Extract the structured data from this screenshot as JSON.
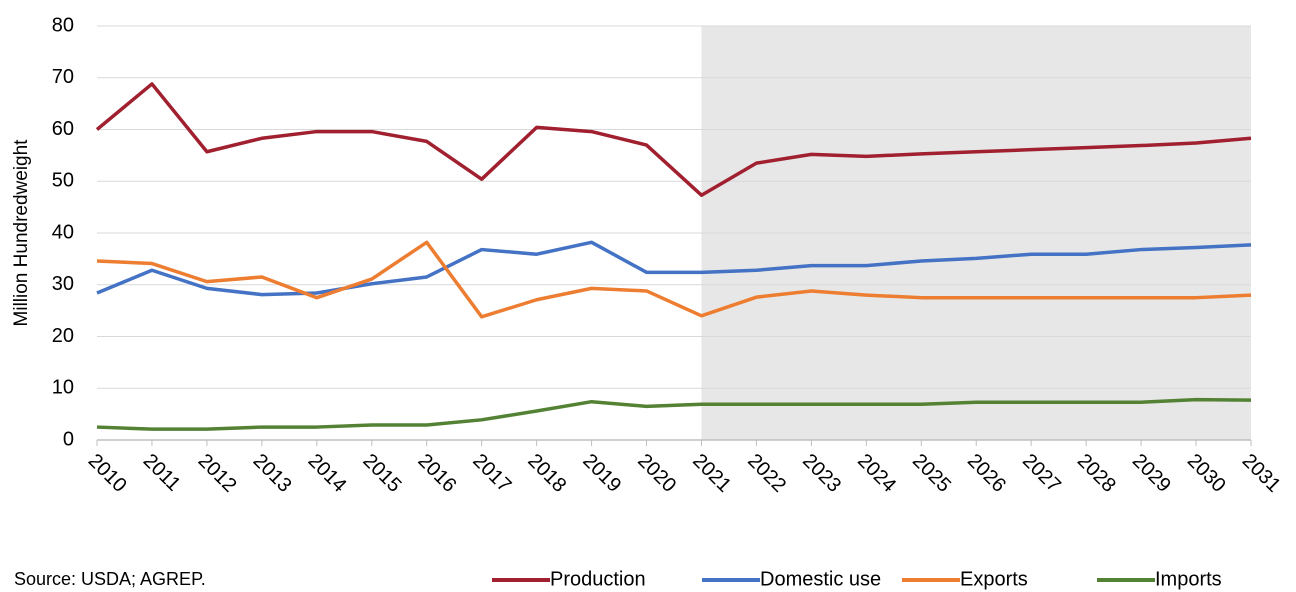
{
  "chart_data": {
    "type": "line",
    "y_label": "Million Hundredweight",
    "source": "Source: USDA; AGREP.",
    "x": [
      2010,
      2011,
      2012,
      2013,
      2014,
      2015,
      2016,
      2017,
      2018,
      2019,
      2020,
      2021,
      2022,
      2023,
      2024,
      2025,
      2026,
      2027,
      2028,
      2029,
      2030,
      2031
    ],
    "xlim": [
      2010,
      2031
    ],
    "xticks": [
      2010,
      2011,
      2012,
      2013,
      2014,
      2015,
      2016,
      2017,
      2018,
      2019,
      2020,
      2021,
      2022,
      2023,
      2024,
      2025,
      2026,
      2027,
      2028,
      2029,
      2030,
      2031
    ],
    "ylim": [
      0,
      80
    ],
    "yticks": [
      0,
      10,
      20,
      30,
      40,
      50,
      60,
      70,
      80
    ],
    "grid": true,
    "shaded_xrange": [
      2021,
      2031
    ],
    "shade_color": "#e7e7e7",
    "legend": "bottom",
    "series": [
      {
        "name": "Production",
        "color": "#a0202f",
        "values": [
          60.0,
          68.8,
          55.7,
          58.3,
          59.6,
          59.6,
          57.7,
          50.4,
          60.4,
          59.6,
          57.0,
          47.3,
          53.5,
          55.2,
          54.8,
          55.3,
          55.7,
          56.1,
          56.5,
          56.9,
          57.4,
          58.3
        ]
      },
      {
        "name": "Domestic use",
        "color": "#4472c4",
        "values": [
          28.4,
          32.8,
          29.3,
          28.1,
          28.4,
          30.2,
          31.5,
          36.8,
          35.9,
          38.2,
          32.4,
          32.4,
          32.8,
          33.7,
          33.7,
          34.6,
          35.1,
          35.9,
          35.9,
          36.8,
          37.2,
          37.7
        ]
      },
      {
        "name": "Exports",
        "color": "#ed7d31",
        "values": [
          34.6,
          34.1,
          30.6,
          31.5,
          27.5,
          31.1,
          38.2,
          23.8,
          27.1,
          29.3,
          28.8,
          24.0,
          27.6,
          28.8,
          28.0,
          27.5,
          27.5,
          27.5,
          27.5,
          27.5,
          27.5,
          28.0
        ]
      },
      {
        "name": "Imports",
        "color": "#548235",
        "values": [
          2.5,
          2.1,
          2.1,
          2.5,
          2.5,
          2.9,
          2.9,
          3.9,
          5.6,
          7.4,
          6.5,
          6.9,
          6.9,
          6.9,
          6.9,
          6.9,
          7.3,
          7.3,
          7.3,
          7.3,
          7.8,
          7.7
        ]
      }
    ]
  }
}
